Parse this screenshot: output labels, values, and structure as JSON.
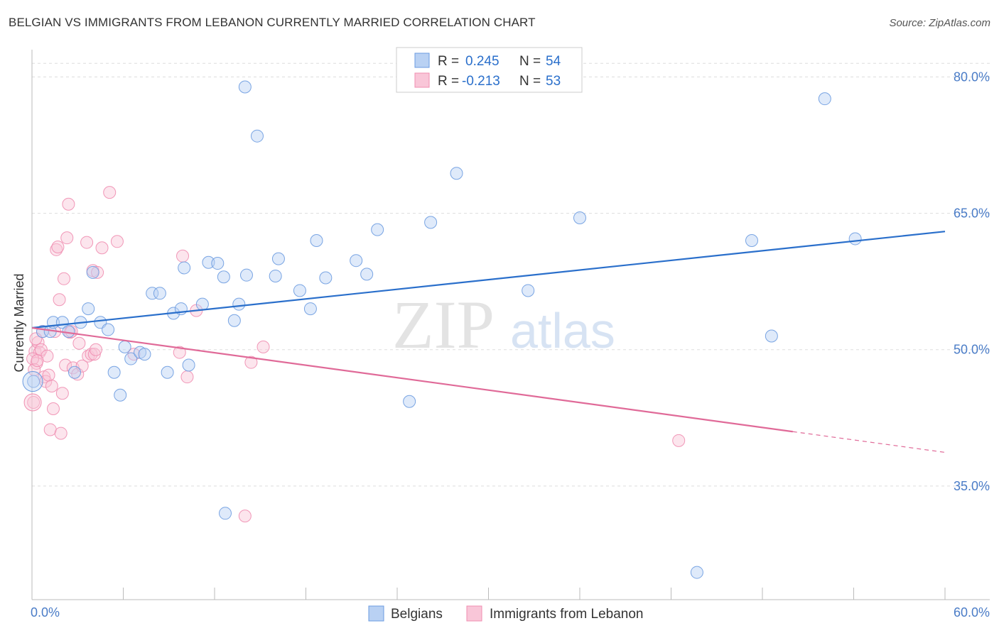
{
  "title": "BELGIAN VS IMMIGRANTS FROM LEBANON CURRENTLY MARRIED CORRELATION CHART",
  "source": "Source: ZipAtlas.com",
  "watermark": {
    "zip": "ZIP",
    "atlas": "atlas"
  },
  "colors": {
    "blue": "#6b9be0",
    "blue_line": "#2a6fcb",
    "pink": "#f08db0",
    "pink_line": "#e06a98",
    "tick_text": "#4a7cc7",
    "grid": "#dddddd"
  },
  "legend": {
    "blue": {
      "r_label": "R =",
      "r_value": "0.245",
      "n_label": "N =",
      "n_value": "54"
    },
    "pink": {
      "r_label": "R =",
      "r_value": "-0.213",
      "n_label": "N =",
      "n_value": "53"
    }
  },
  "chart_data": {
    "type": "scatter",
    "title": "BELGIAN VS IMMIGRANTS FROM LEBANON CURRENTLY MARRIED CORRELATION CHART",
    "xlabel": "",
    "ylabel": "Currently Married",
    "xlim": [
      0,
      60
    ],
    "ylim": [
      22.5,
      83
    ],
    "x_tick_labels": [
      "0.0%",
      "60.0%"
    ],
    "y_ticks": [
      35,
      50,
      65,
      80
    ],
    "y_tick_labels": [
      "35.0%",
      "50.0%",
      "65.0%",
      "80.0%"
    ],
    "series": [
      {
        "name": "Belgians",
        "color": "#6b9be0",
        "trend": {
          "x0": 0,
          "y0": 52.4,
          "x1": 60,
          "y1": 63.0,
          "dashed_from": null
        },
        "points": [
          [
            0.1,
            46.5
          ],
          [
            0.7,
            52.0
          ],
          [
            1.2,
            52.0
          ],
          [
            1.4,
            53.0
          ],
          [
            2.0,
            53.0
          ],
          [
            2.4,
            52.0
          ],
          [
            2.8,
            47.5
          ],
          [
            3.2,
            53.0
          ],
          [
            3.7,
            54.5
          ],
          [
            4.5,
            53.0
          ],
          [
            4.0,
            58.5
          ],
          [
            5.0,
            52.2
          ],
          [
            5.4,
            47.5
          ],
          [
            5.8,
            45.0
          ],
          [
            6.1,
            50.3
          ],
          [
            6.5,
            49.0
          ],
          [
            7.1,
            49.7
          ],
          [
            7.4,
            49.5
          ],
          [
            7.9,
            56.2
          ],
          [
            8.4,
            56.2
          ],
          [
            8.9,
            47.5
          ],
          [
            9.3,
            54.0
          ],
          [
            9.8,
            54.5
          ],
          [
            10.0,
            59.0
          ],
          [
            10.3,
            48.3
          ],
          [
            11.2,
            55.0
          ],
          [
            11.6,
            59.6
          ],
          [
            12.2,
            59.5
          ],
          [
            12.6,
            58.0
          ],
          [
            12.7,
            32.0
          ],
          [
            13.3,
            53.2
          ],
          [
            13.6,
            55.0
          ],
          [
            14.0,
            78.9
          ],
          [
            14.1,
            58.2
          ],
          [
            14.8,
            73.5
          ],
          [
            16.0,
            58.1
          ],
          [
            16.2,
            60.0
          ],
          [
            17.6,
            56.5
          ],
          [
            18.3,
            54.5
          ],
          [
            18.7,
            62.0
          ],
          [
            19.3,
            57.9
          ],
          [
            21.3,
            59.8
          ],
          [
            22.0,
            58.3
          ],
          [
            22.7,
            63.2
          ],
          [
            24.8,
            44.3
          ],
          [
            26.2,
            64.0
          ],
          [
            27.9,
            69.4
          ],
          [
            32.6,
            56.5
          ],
          [
            36.0,
            64.5
          ],
          [
            43.7,
            25.5
          ],
          [
            47.3,
            62.0
          ],
          [
            48.6,
            51.5
          ],
          [
            52.1,
            77.6
          ],
          [
            54.1,
            62.2
          ]
        ]
      },
      {
        "name": "Immigrants from Lebanon",
        "color": "#f08db0",
        "trend": {
          "x0": 0,
          "y0": 52.4,
          "x1": 60,
          "y1": 38.7,
          "dashed_from": 50.0
        },
        "points": [
          [
            0.1,
            44.2
          ],
          [
            0.2,
            49.8
          ],
          [
            0.3,
            48.5
          ],
          [
            0.4,
            50.8
          ],
          [
            0.5,
            49.7
          ],
          [
            0.6,
            50.0
          ],
          [
            0.7,
            52.0
          ],
          [
            0.8,
            47.0
          ],
          [
            0.9,
            46.5
          ],
          [
            1.0,
            49.3
          ],
          [
            1.1,
            47.2
          ],
          [
            1.2,
            41.2
          ],
          [
            1.3,
            46.0
          ],
          [
            1.4,
            43.5
          ],
          [
            1.5,
            52.0
          ],
          [
            1.6,
            61.0
          ],
          [
            1.7,
            61.3
          ],
          [
            1.8,
            55.5
          ],
          [
            1.9,
            40.8
          ],
          [
            2.0,
            45.2
          ],
          [
            2.1,
            57.8
          ],
          [
            2.2,
            48.3
          ],
          [
            2.3,
            62.3
          ],
          [
            2.4,
            66.0
          ],
          [
            2.5,
            51.9
          ],
          [
            2.6,
            52.0
          ],
          [
            2.7,
            48.0
          ],
          [
            3.0,
            47.3
          ],
          [
            3.1,
            50.7
          ],
          [
            3.3,
            48.2
          ],
          [
            3.6,
            61.8
          ],
          [
            3.7,
            49.3
          ],
          [
            3.9,
            49.5
          ],
          [
            4.0,
            58.7
          ],
          [
            4.1,
            49.5
          ],
          [
            4.2,
            50.0
          ],
          [
            4.3,
            58.5
          ],
          [
            4.6,
            61.2
          ],
          [
            5.1,
            67.3
          ],
          [
            5.6,
            61.9
          ],
          [
            6.7,
            49.5
          ],
          [
            9.7,
            49.7
          ],
          [
            9.9,
            60.3
          ],
          [
            10.2,
            47.0
          ],
          [
            10.8,
            54.3
          ],
          [
            14.0,
            31.7
          ],
          [
            14.4,
            48.6
          ],
          [
            15.2,
            50.3
          ],
          [
            42.5,
            40.0
          ],
          [
            0.05,
            49.0
          ],
          [
            0.15,
            47.8
          ],
          [
            0.25,
            51.2
          ],
          [
            0.35,
            48.8
          ]
        ]
      }
    ]
  },
  "bottom_legend": [
    {
      "label": "Belgians"
    },
    {
      "label": "Immigrants from Lebanon"
    }
  ]
}
